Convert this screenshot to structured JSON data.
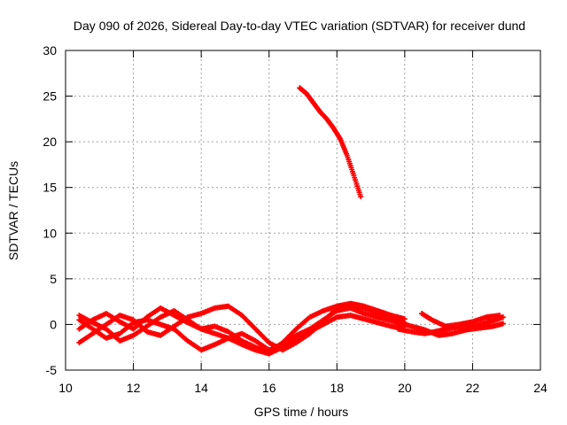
{
  "chart_data": {
    "type": "scatter",
    "title": "Day 090 of 2026, Sidereal Day-to-day VTEC variation (SDTVAR) for receiver dund",
    "xlabel": "GPS time / hours",
    "ylabel": "SDTVAR / TECUs",
    "xlim": [
      10,
      24
    ],
    "ylim": [
      -5,
      30
    ],
    "xticks": [
      10,
      12,
      14,
      16,
      18,
      20,
      22,
      24
    ],
    "yticks": [
      -5,
      0,
      5,
      10,
      15,
      20,
      25,
      30
    ],
    "grid": true,
    "marker": "+",
    "color": "#ff0000",
    "series": [
      {
        "name": "track-a",
        "points": [
          [
            10.4,
            -0.5
          ],
          [
            10.8,
            0.5
          ],
          [
            11.2,
            1.2
          ],
          [
            11.6,
            0.3
          ],
          [
            12.0,
            -0.5
          ],
          [
            12.4,
            0.8
          ],
          [
            12.8,
            1.8
          ],
          [
            13.2,
            1.0
          ],
          [
            13.6,
            0.2
          ],
          [
            14.0,
            -0.5
          ],
          [
            14.4,
            -1.0
          ],
          [
            14.8,
            -1.5
          ],
          [
            15.2,
            -2.2
          ],
          [
            15.6,
            -2.8
          ],
          [
            16.0,
            -3.2
          ],
          [
            16.4,
            -2.5
          ],
          [
            16.8,
            -1.5
          ],
          [
            17.2,
            -0.8
          ],
          [
            17.6,
            0.0
          ],
          [
            18.0,
            0.8
          ],
          [
            18.4,
            1.0
          ],
          [
            18.8,
            0.6
          ],
          [
            19.2,
            0.2
          ],
          [
            19.6,
            -0.2
          ],
          [
            20.0,
            -0.5
          ]
        ]
      },
      {
        "name": "track-b",
        "points": [
          [
            10.4,
            0.5
          ],
          [
            10.8,
            -0.5
          ],
          [
            11.2,
            -1.5
          ],
          [
            11.6,
            -1.0
          ],
          [
            12.0,
            0.2
          ],
          [
            12.4,
            0.5
          ],
          [
            12.8,
            0.0
          ],
          [
            13.2,
            -0.5
          ],
          [
            13.6,
            -1.8
          ],
          [
            14.0,
            -2.8
          ],
          [
            14.4,
            -2.2
          ],
          [
            14.8,
            -1.5
          ],
          [
            15.2,
            -1.0
          ],
          [
            15.6,
            -1.8
          ],
          [
            16.0,
            -2.8
          ],
          [
            16.4,
            -2.2
          ],
          [
            16.8,
            -1.2
          ],
          [
            17.2,
            -0.5
          ],
          [
            17.6,
            0.5
          ],
          [
            18.0,
            1.5
          ],
          [
            18.4,
            1.8
          ],
          [
            18.8,
            1.2
          ],
          [
            19.2,
            0.8
          ],
          [
            19.6,
            0.4
          ],
          [
            20.0,
            0.0
          ]
        ]
      },
      {
        "name": "track-c",
        "points": [
          [
            10.4,
            -2.0
          ],
          [
            10.8,
            -1.0
          ],
          [
            11.2,
            0.0
          ],
          [
            11.6,
            1.0
          ],
          [
            12.0,
            0.5
          ],
          [
            12.4,
            -0.8
          ],
          [
            12.8,
            -1.2
          ],
          [
            13.2,
            -0.2
          ],
          [
            13.6,
            0.8
          ],
          [
            14.0,
            1.2
          ],
          [
            14.4,
            1.8
          ],
          [
            14.8,
            2.0
          ],
          [
            15.2,
            1.0
          ],
          [
            15.6,
            -0.5
          ],
          [
            16.0,
            -2.0
          ],
          [
            16.4,
            -2.8
          ],
          [
            16.8,
            -2.0
          ],
          [
            17.2,
            -1.0
          ],
          [
            17.6,
            0.3
          ],
          [
            18.0,
            1.8
          ],
          [
            18.4,
            2.2
          ],
          [
            18.8,
            1.8
          ],
          [
            19.2,
            1.2
          ],
          [
            19.6,
            0.6
          ],
          [
            20.0,
            0.2
          ]
        ]
      },
      {
        "name": "track-d",
        "points": [
          [
            10.4,
            1.0
          ],
          [
            10.8,
            0.2
          ],
          [
            11.2,
            -0.5
          ],
          [
            11.6,
            -1.8
          ],
          [
            12.0,
            -1.2
          ],
          [
            12.4,
            -0.2
          ],
          [
            12.8,
            0.8
          ],
          [
            13.2,
            1.5
          ],
          [
            13.6,
            0.5
          ],
          [
            14.0,
            -0.5
          ],
          [
            14.4,
            -0.2
          ],
          [
            14.8,
            -0.8
          ],
          [
            15.2,
            -1.8
          ],
          [
            15.6,
            -2.5
          ],
          [
            16.0,
            -3.0
          ],
          [
            16.4,
            -2.0
          ],
          [
            16.8,
            -0.5
          ],
          [
            17.2,
            0.8
          ],
          [
            17.6,
            1.5
          ],
          [
            18.0,
            2.0
          ],
          [
            18.4,
            2.3
          ],
          [
            18.8,
            2.0
          ],
          [
            19.2,
            1.5
          ],
          [
            19.6,
            1.0
          ],
          [
            20.0,
            0.6
          ]
        ]
      },
      {
        "name": "track-e",
        "points": [
          [
            19.8,
            -0.5
          ],
          [
            20.2,
            -0.8
          ],
          [
            20.6,
            -1.0
          ],
          [
            21.0,
            -0.7
          ],
          [
            21.4,
            -0.4
          ],
          [
            21.8,
            -0.2
          ],
          [
            22.2,
            0.0
          ],
          [
            22.6,
            0.4
          ],
          [
            22.9,
            0.8
          ]
        ]
      },
      {
        "name": "track-f",
        "points": [
          [
            19.8,
            0.2
          ],
          [
            20.2,
            -0.2
          ],
          [
            20.6,
            -0.6
          ],
          [
            21.0,
            -1.2
          ],
          [
            21.4,
            -1.0
          ],
          [
            21.8,
            -0.6
          ],
          [
            22.2,
            -0.4
          ],
          [
            22.6,
            -0.2
          ],
          [
            22.9,
            0.1
          ]
        ]
      },
      {
        "name": "track-g",
        "points": [
          [
            20.5,
            1.2
          ],
          [
            20.8,
            0.5
          ],
          [
            21.2,
            -0.2
          ],
          [
            21.6,
            0.0
          ],
          [
            22.0,
            0.3
          ],
          [
            22.4,
            0.8
          ],
          [
            22.8,
            1.0
          ]
        ]
      },
      {
        "name": "track-h",
        "points": [
          [
            16.9,
            25.9
          ],
          [
            17.1,
            25.3
          ],
          [
            17.3,
            24.3
          ],
          [
            17.5,
            23.3
          ],
          [
            17.7,
            22.5
          ],
          [
            17.9,
            21.5
          ],
          [
            18.1,
            20.3
          ],
          [
            18.3,
            18.5
          ],
          [
            18.5,
            16.3
          ],
          [
            18.7,
            14.0
          ]
        ]
      }
    ]
  }
}
